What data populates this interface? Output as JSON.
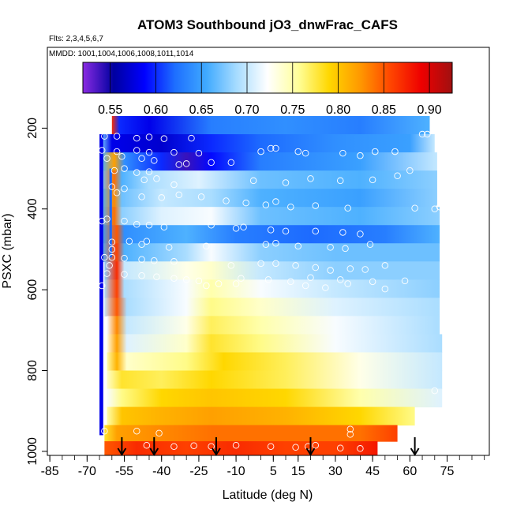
{
  "chart_data": {
    "type": "heatmap",
    "title": "ATOM3 Southbound jO3_dnwFrac_CAFS",
    "flights_note": "Flts: 2,3,4,5,6,7",
    "dates_note": "MMDD: 1001,1004,1006,1008,1011,1014",
    "xlabel": "Latitude (deg N)",
    "ylabel": "PSXC (mbar)",
    "xlim": [
      -86,
      92
    ],
    "ylim": [
      1010,
      0
    ],
    "x_ticks": [
      -85,
      -70,
      -55,
      -40,
      -25,
      -10,
      5,
      15,
      30,
      45,
      60,
      75
    ],
    "x_tick_labels": [
      "-85",
      "-70",
      "-55",
      "-40",
      "-25",
      "-10",
      "5",
      "15",
      "30",
      "45",
      "60",
      "75"
    ],
    "y_ticks": [
      200,
      400,
      600,
      800,
      1000
    ],
    "y_tick_labels": [
      "200",
      "400",
      "600",
      "800",
      "1000"
    ],
    "colorbar": {
      "range": [
        0.52,
        0.925
      ],
      "ticks": [
        0.55,
        0.6,
        0.65,
        0.7,
        0.75,
        0.8,
        0.85,
        0.9
      ],
      "tick_labels": [
        "0.55",
        "0.60",
        "0.65",
        "0.70",
        "0.75",
        "0.80",
        "0.85",
        "0.90"
      ],
      "colors": [
        "#8a2be2",
        "#0000a0",
        "#0000ff",
        "#1e6fff",
        "#3fa9ff",
        "#a7dcff",
        "#ffffff",
        "#ffff99",
        "#ffd700",
        "#ff9900",
        "#ff4500",
        "#ee0000",
        "#a01010"
      ]
    },
    "heatmap_rows": [
      {
        "pmin": 170,
        "pmax": 215,
        "xmin": -60,
        "xmax": 68,
        "stops": [
          [
            -60,
            0.87
          ],
          [
            -57,
            0.6
          ],
          [
            -45,
            0.58
          ],
          [
            -20,
            0.63
          ],
          [
            10,
            0.64
          ],
          [
            40,
            0.63
          ],
          [
            68,
            0.66
          ]
        ]
      },
      {
        "pmin": 215,
        "pmax": 260,
        "xmin": -64,
        "xmax": 70,
        "stops": [
          [
            -64,
            0.67
          ],
          [
            -60,
            0.58
          ],
          [
            -40,
            0.57
          ],
          [
            -20,
            0.6
          ],
          [
            0,
            0.62
          ],
          [
            30,
            0.64
          ],
          [
            60,
            0.65
          ],
          [
            70,
            0.7
          ]
        ]
      },
      {
        "pmin": 260,
        "pmax": 305,
        "xmin": -64,
        "xmax": 71,
        "stops": [
          [
            -64,
            0.66
          ],
          [
            -59,
            0.82
          ],
          [
            -55,
            0.64
          ],
          [
            -40,
            0.6
          ],
          [
            -30,
            0.54
          ],
          [
            -20,
            0.59
          ],
          [
            0,
            0.63
          ],
          [
            40,
            0.65
          ],
          [
            71,
            0.7
          ]
        ]
      },
      {
        "pmin": 305,
        "pmax": 350,
        "xmin": -64,
        "xmax": 71,
        "stops": [
          [
            -64,
            0.67
          ],
          [
            -59,
            0.84
          ],
          [
            -56,
            0.66
          ],
          [
            -45,
            0.69
          ],
          [
            -25,
            0.71
          ],
          [
            0,
            0.67
          ],
          [
            40,
            0.66
          ],
          [
            71,
            0.68
          ]
        ]
      },
      {
        "pmin": 350,
        "pmax": 395,
        "xmin": -64,
        "xmax": 71,
        "stops": [
          [
            -64,
            0.66
          ],
          [
            -59,
            0.83
          ],
          [
            -56,
            0.67
          ],
          [
            -40,
            0.7
          ],
          [
            -20,
            0.69
          ],
          [
            0,
            0.66
          ],
          [
            40,
            0.65
          ],
          [
            71,
            0.68
          ]
        ]
      },
      {
        "pmin": 395,
        "pmax": 440,
        "xmin": -64,
        "xmax": 72,
        "stops": [
          [
            -64,
            0.66
          ],
          [
            -59,
            0.84
          ],
          [
            -56,
            0.68
          ],
          [
            -40,
            0.71
          ],
          [
            -20,
            0.72
          ],
          [
            0,
            0.67
          ],
          [
            40,
            0.66
          ],
          [
            72,
            0.68
          ]
        ]
      },
      {
        "pmin": 440,
        "pmax": 485,
        "xmin": -64,
        "xmax": 72,
        "stops": [
          [
            -64,
            0.65
          ],
          [
            -58,
            0.85
          ],
          [
            -55,
            0.64
          ],
          [
            -30,
            0.66
          ],
          [
            -10,
            0.63
          ],
          [
            20,
            0.62
          ],
          [
            50,
            0.63
          ],
          [
            72,
            0.66
          ]
        ]
      },
      {
        "pmin": 485,
        "pmax": 530,
        "xmin": -64,
        "xmax": 72,
        "stops": [
          [
            -64,
            0.66
          ],
          [
            -58,
            0.86
          ],
          [
            -55,
            0.66
          ],
          [
            -30,
            0.69
          ],
          [
            -20,
            0.72
          ],
          [
            0,
            0.68
          ],
          [
            30,
            0.67
          ],
          [
            72,
            0.67
          ]
        ]
      },
      {
        "pmin": 530,
        "pmax": 575,
        "xmin": -63,
        "xmax": 72,
        "stops": [
          [
            -63,
            0.68
          ],
          [
            -58,
            0.87
          ],
          [
            -55,
            0.7
          ],
          [
            -30,
            0.73
          ],
          [
            -20,
            0.74
          ],
          [
            0,
            0.7
          ],
          [
            30,
            0.68
          ],
          [
            72,
            0.68
          ]
        ]
      },
      {
        "pmin": 575,
        "pmax": 620,
        "xmin": -63,
        "xmax": 72,
        "stops": [
          [
            -63,
            0.69
          ],
          [
            -58,
            0.86
          ],
          [
            -55,
            0.69
          ],
          [
            -30,
            0.72
          ],
          [
            -20,
            0.75
          ],
          [
            0,
            0.72
          ],
          [
            30,
            0.7
          ],
          [
            72,
            0.68
          ]
        ]
      },
      {
        "pmin": 620,
        "pmax": 665,
        "xmin": -63,
        "xmax": 72,
        "stops": [
          [
            -63,
            0.7
          ],
          [
            -58,
            0.85
          ],
          [
            -54,
            0.69
          ],
          [
            -30,
            0.72
          ],
          [
            -20,
            0.76
          ],
          [
            0,
            0.74
          ],
          [
            30,
            0.71
          ],
          [
            72,
            0.69
          ]
        ]
      },
      {
        "pmin": 665,
        "pmax": 710,
        "xmin": -62,
        "xmax": 72,
        "stops": [
          [
            -62,
            0.72
          ],
          [
            -58,
            0.83
          ],
          [
            -54,
            0.7
          ],
          [
            -30,
            0.73
          ],
          [
            -20,
            0.77
          ],
          [
            0,
            0.75
          ],
          [
            30,
            0.72
          ],
          [
            72,
            0.69
          ]
        ]
      },
      {
        "pmin": 710,
        "pmax": 755,
        "xmin": -62,
        "xmax": 73,
        "stops": [
          [
            -62,
            0.73
          ],
          [
            -58,
            0.82
          ],
          [
            -54,
            0.71
          ],
          [
            -30,
            0.74
          ],
          [
            -20,
            0.78
          ],
          [
            0,
            0.76
          ],
          [
            30,
            0.72
          ],
          [
            73,
            0.69
          ]
        ]
      },
      {
        "pmin": 755,
        "pmax": 800,
        "xmin": -62,
        "xmax": 73,
        "stops": [
          [
            -62,
            0.75
          ],
          [
            -58,
            0.81
          ],
          [
            -54,
            0.74
          ],
          [
            -30,
            0.76
          ],
          [
            -15,
            0.79
          ],
          [
            10,
            0.77
          ],
          [
            40,
            0.73
          ],
          [
            73,
            0.7
          ]
        ]
      },
      {
        "pmin": 800,
        "pmax": 845,
        "xmin": -62,
        "xmax": 73,
        "stops": [
          [
            -62,
            0.74
          ],
          [
            -56,
            0.78
          ],
          [
            -40,
            0.77
          ],
          [
            -20,
            0.79
          ],
          [
            10,
            0.77
          ],
          [
            40,
            0.73
          ],
          [
            73,
            0.7
          ]
        ]
      },
      {
        "pmin": 845,
        "pmax": 890,
        "xmin": -62,
        "xmax": 73,
        "stops": [
          [
            -62,
            0.72
          ],
          [
            -56,
            0.76
          ],
          [
            -40,
            0.79
          ],
          [
            -20,
            0.8
          ],
          [
            10,
            0.79
          ],
          [
            40,
            0.75
          ],
          [
            73,
            0.71
          ]
        ]
      },
      {
        "pmin": 890,
        "pmax": 935,
        "xmin": -62,
        "xmax": 62,
        "stops": [
          [
            -62,
            0.75
          ],
          [
            -56,
            0.8
          ],
          [
            -40,
            0.81
          ],
          [
            -20,
            0.82
          ],
          [
            10,
            0.81
          ],
          [
            40,
            0.79
          ],
          [
            62,
            0.76
          ]
        ]
      },
      {
        "pmin": 935,
        "pmax": 975,
        "xmin": -63,
        "xmax": 55,
        "stops": [
          [
            -63,
            0.78
          ],
          [
            -58,
            0.82
          ],
          [
            -40,
            0.83
          ],
          [
            -20,
            0.84
          ],
          [
            10,
            0.84
          ],
          [
            40,
            0.84
          ],
          [
            55,
            0.86
          ]
        ]
      },
      {
        "pmin": 975,
        "pmax": 1010,
        "xmin": -63,
        "xmax": 47,
        "stops": [
          [
            -63,
            0.85
          ],
          [
            -50,
            0.87
          ],
          [
            -30,
            0.86
          ],
          [
            -10,
            0.87
          ],
          [
            10,
            0.86
          ],
          [
            30,
            0.86
          ],
          [
            47,
            0.88
          ]
        ]
      }
    ],
    "edge_bands": [
      {
        "pmin": 215,
        "pmax": 960,
        "xmin": -65,
        "xmax": -63.5,
        "value": 0.58
      },
      {
        "pmin": 300,
        "pmax": 520,
        "xmin": -61,
        "xmax": -60,
        "value": 0.62
      }
    ],
    "markers": [
      [
        -63,
        220
      ],
      [
        -58,
        220
      ],
      [
        -50,
        225
      ],
      [
        -45,
        222
      ],
      [
        -39,
        226
      ],
      [
        -28,
        225
      ],
      [
        -64,
        255
      ],
      [
        -58,
        258
      ],
      [
        -50,
        255
      ],
      [
        -45,
        260
      ],
      [
        -35,
        260
      ],
      [
        -25,
        262
      ],
      [
        0,
        258
      ],
      [
        4,
        250
      ],
      [
        6,
        250
      ],
      [
        15,
        258
      ],
      [
        18,
        262
      ],
      [
        33,
        262
      ],
      [
        40,
        268
      ],
      [
        46,
        258
      ],
      [
        54,
        258
      ],
      [
        -62,
        275
      ],
      [
        -56,
        270
      ],
      [
        -48,
        275
      ],
      [
        -43,
        280
      ],
      [
        -33,
        290
      ],
      [
        -30,
        288
      ],
      [
        -20,
        285
      ],
      [
        -12,
        285
      ],
      [
        -59,
        305
      ],
      [
        -55,
        300
      ],
      [
        -50,
        310
      ],
      [
        -45,
        308
      ],
      [
        -47,
        328
      ],
      [
        -42,
        325
      ],
      [
        -35,
        340
      ],
      [
        -3,
        330
      ],
      [
        10,
        335
      ],
      [
        20,
        325
      ],
      [
        32,
        330
      ],
      [
        45,
        328
      ],
      [
        55,
        318
      ],
      [
        -60,
        345
      ],
      [
        -58,
        360
      ],
      [
        -55,
        350
      ],
      [
        -48,
        370
      ],
      [
        -40,
        372
      ],
      [
        -33,
        365
      ],
      [
        -24,
        370
      ],
      [
        -14,
        380
      ],
      [
        -6,
        385
      ],
      [
        2,
        390
      ],
      [
        6,
        382
      ],
      [
        12,
        395
      ],
      [
        22,
        392
      ],
      [
        35,
        398
      ],
      [
        62,
        398
      ],
      [
        -62,
        425
      ],
      [
        -64,
        430
      ],
      [
        -55,
        430
      ],
      [
        -50,
        438
      ],
      [
        -45,
        440
      ],
      [
        -39,
        445
      ],
      [
        -20,
        440
      ],
      [
        -10,
        448
      ],
      [
        -7,
        445
      ],
      [
        4,
        452
      ],
      [
        10,
        455
      ],
      [
        22,
        455
      ],
      [
        33,
        458
      ],
      [
        40,
        462
      ],
      [
        -60,
        482
      ],
      [
        -53,
        480
      ],
      [
        -48,
        488
      ],
      [
        -46,
        480
      ],
      [
        -37,
        495
      ],
      [
        -22,
        492
      ],
      [
        2,
        488
      ],
      [
        6,
        485
      ],
      [
        15,
        492
      ],
      [
        28,
        495
      ],
      [
        34,
        498
      ],
      [
        44,
        488
      ],
      [
        -60,
        520
      ],
      [
        -55,
        522
      ],
      [
        -48,
        525
      ],
      [
        -43,
        528
      ],
      [
        -35,
        530
      ],
      [
        -12,
        540
      ],
      [
        0,
        535
      ],
      [
        6,
        535
      ],
      [
        14,
        540
      ],
      [
        22,
        545
      ],
      [
        28,
        552
      ],
      [
        36,
        548
      ],
      [
        42,
        550
      ],
      [
        50,
        540
      ],
      [
        -62,
        560
      ],
      [
        -55,
        562
      ],
      [
        -48,
        565
      ],
      [
        -42,
        568
      ],
      [
        -35,
        572
      ],
      [
        -30,
        575
      ],
      [
        -25,
        578
      ],
      [
        -17,
        585
      ],
      [
        -8,
        572
      ],
      [
        3,
        575
      ],
      [
        12,
        580
      ],
      [
        20,
        570
      ],
      [
        32,
        575
      ],
      [
        45,
        580
      ],
      [
        58,
        578
      ],
      [
        -22,
        590
      ],
      [
        -10,
        585
      ],
      [
        18,
        590
      ],
      [
        26,
        595
      ],
      [
        35,
        585
      ],
      [
        50,
        598
      ],
      [
        -63,
        520
      ],
      [
        -61,
        540
      ],
      [
        -60,
        500
      ],
      [
        -64,
        590
      ],
      [
        -63,
        950
      ],
      [
        -50,
        950
      ],
      [
        -41,
        955
      ],
      [
        -46,
        985
      ],
      [
        -35,
        988
      ],
      [
        -27,
        986
      ],
      [
        -20,
        988
      ],
      [
        -10,
        985
      ],
      [
        4,
        988
      ],
      [
        14,
        990
      ],
      [
        19,
        988
      ],
      [
        22,
        985
      ],
      [
        32,
        992
      ],
      [
        40,
        993
      ],
      [
        36,
        945
      ],
      [
        36,
        958
      ],
      [
        70,
        850
      ],
      [
        65,
        215
      ],
      [
        67,
        215
      ],
      [
        60,
        305
      ],
      [
        70,
        400
      ],
      [
        72,
        395
      ]
    ],
    "arrows": [
      {
        "x": -56,
        "p_from": 965,
        "p_to": 1008
      },
      {
        "x": -43,
        "p_from": 965,
        "p_to": 1008
      },
      {
        "x": -18,
        "p_from": 965,
        "p_to": 1008
      },
      {
        "x": 20,
        "p_from": 965,
        "p_to": 1008
      },
      {
        "x": 62,
        "p_from": 965,
        "p_to": 1008
      }
    ]
  }
}
